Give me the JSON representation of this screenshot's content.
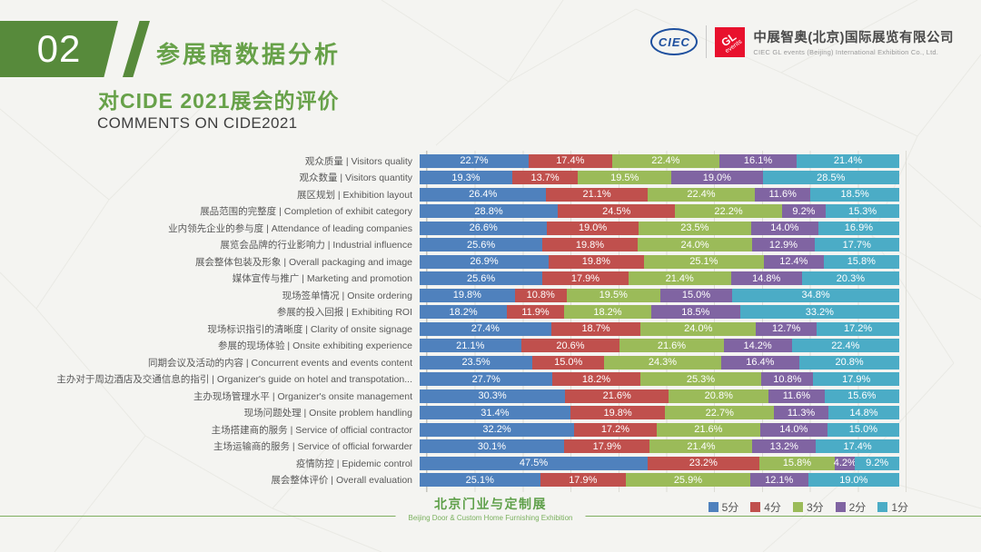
{
  "header": {
    "badge_number": "02",
    "section_title": "参展商数据分析",
    "logo": {
      "ciec": "CIEC",
      "gl_top": "GL",
      "gl_bottom": "events",
      "company_zh": "中展智奥(北京)国际展览有限公司",
      "company_en": "CIEC GL events (Beijing) International Exhibition Co., Ltd."
    }
  },
  "titles": {
    "zh": "对CIDE 2021展会的评价",
    "en": "COMMENTS ON CIDE2021"
  },
  "footer": {
    "zh": "北京门业与定制展",
    "en": "Beijing Door & Custom Home Furnishing Exhibition"
  },
  "chart_data": {
    "type": "bar",
    "stacked": true,
    "orientation": "horizontal",
    "unit": "%",
    "xlim": [
      0,
      100
    ],
    "grid": "vertical, every 10%",
    "legend_position": "bottom-right",
    "value_labels": "inside, white, one decimal + %",
    "series_names": [
      "5分",
      "4分",
      "3分",
      "2分",
      "1分"
    ],
    "series_colors": [
      "#4F81BD",
      "#C0504D",
      "#9BBB59",
      "#8064A2",
      "#4BACC6"
    ],
    "rows": [
      {
        "zh": "观众质量",
        "en": "Visitors quality",
        "values": [
          22.7,
          17.4,
          22.4,
          16.1,
          21.4
        ]
      },
      {
        "zh": "观众数量",
        "en": "Visitors quantity",
        "values": [
          19.3,
          13.7,
          19.5,
          19.0,
          28.5
        ]
      },
      {
        "zh": "展区规划",
        "en": "Exhibition layout",
        "values": [
          26.4,
          21.1,
          22.4,
          11.6,
          18.5
        ]
      },
      {
        "zh": "展品范围的完整度",
        "en": "Completion of exhibit category",
        "values": [
          28.8,
          24.5,
          22.2,
          9.2,
          15.3
        ]
      },
      {
        "zh": "业内领先企业的参与度",
        "en": "Attendance of leading companies",
        "values": [
          26.6,
          19.0,
          23.5,
          14.0,
          16.9
        ]
      },
      {
        "zh": "展览会品牌的行业影响力",
        "en": "Industrial influence",
        "values": [
          25.6,
          19.8,
          24.0,
          12.9,
          17.7
        ]
      },
      {
        "zh": "展会整体包装及形象",
        "en": "Overall packaging and image",
        "values": [
          26.9,
          19.8,
          25.1,
          12.4,
          15.8
        ]
      },
      {
        "zh": "媒体宣传与推广",
        "en": "Marketing and promotion",
        "values": [
          25.6,
          17.9,
          21.4,
          14.8,
          20.3
        ]
      },
      {
        "zh": "现场签单情况",
        "en": "Onsite ordering",
        "values": [
          19.8,
          10.8,
          19.5,
          15.0,
          34.8
        ]
      },
      {
        "zh": "参展的投入回报",
        "en": "Exhibiting ROI",
        "values": [
          18.2,
          11.9,
          18.2,
          18.5,
          33.2
        ]
      },
      {
        "zh": "现场标识指引的清晰度",
        "en": "Clarity of onsite signage",
        "values": [
          27.4,
          18.7,
          24.0,
          12.7,
          17.2
        ]
      },
      {
        "zh": "参展的现场体验",
        "en": "Onsite exhibiting experience",
        "values": [
          21.1,
          20.6,
          21.6,
          14.2,
          22.4
        ]
      },
      {
        "zh": "同期会议及活动的内容",
        "en": "Concurrent events and events content",
        "values": [
          23.5,
          15.0,
          24.3,
          16.4,
          20.8
        ]
      },
      {
        "zh": "主办对于周边酒店及交通信息的指引",
        "en": "Organizer's guide on hotel and transpotation...",
        "values": [
          27.7,
          18.2,
          25.3,
          10.8,
          17.9
        ]
      },
      {
        "zh": "主办现场管理水平",
        "en": "Organizer's onsite management",
        "values": [
          30.3,
          21.6,
          20.8,
          11.6,
          15.6
        ]
      },
      {
        "zh": "现场问题处理",
        "en": "Onsite problem handling",
        "values": [
          31.4,
          19.8,
          22.7,
          11.3,
          14.8
        ]
      },
      {
        "zh": "主场搭建商的服务",
        "en": "Service of official contractor",
        "values": [
          32.2,
          17.2,
          21.6,
          14.0,
          15.0
        ]
      },
      {
        "zh": "主场运输商的服务",
        "en": "Service of official forwarder",
        "values": [
          30.1,
          17.9,
          21.4,
          13.2,
          17.4
        ]
      },
      {
        "zh": "疫情防控",
        "en": "Epidemic control",
        "values": [
          47.5,
          23.2,
          15.8,
          4.2,
          9.2
        ]
      },
      {
        "zh": "展会整体评价",
        "en": "Overall evaluation",
        "values": [
          25.1,
          17.9,
          25.9,
          12.1,
          19.0
        ]
      }
    ]
  }
}
